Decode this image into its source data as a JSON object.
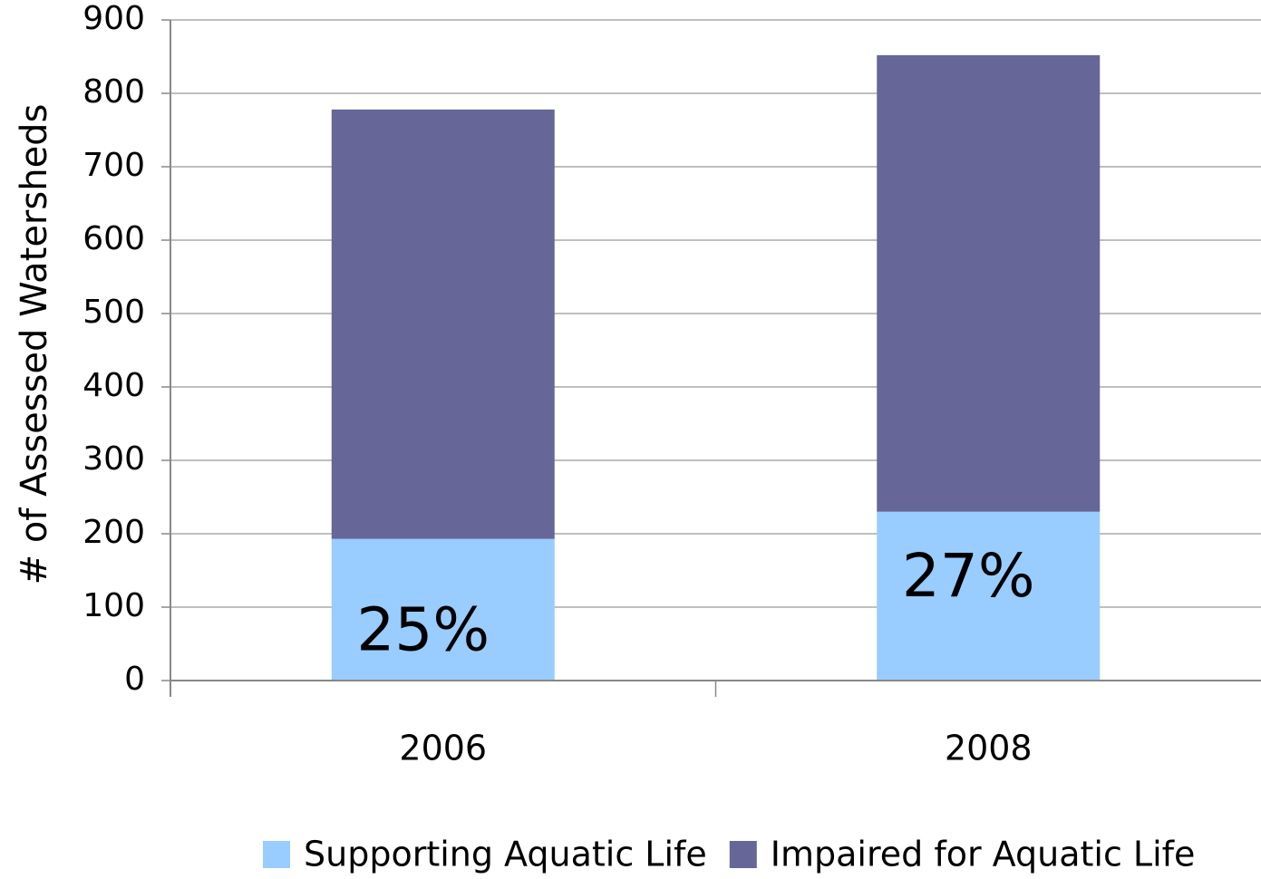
{
  "chart_data": {
    "type": "stacked_bar",
    "y_label": "# of Assessed Watersheds",
    "categories": [
      "2006",
      "2008"
    ],
    "series": [
      {
        "name": "Supporting Aquatic Life",
        "color": "#99ccff",
        "values": [
          193,
          230
        ]
      },
      {
        "name": "Impaired for Aquatic Life",
        "color": "#666699",
        "values": [
          585,
          622
        ]
      }
    ],
    "annotations": [
      "25%",
      "27%"
    ],
    "ylim": [
      0,
      900
    ],
    "yticks": [
      0,
      100,
      200,
      300,
      400,
      500,
      600,
      700,
      800,
      900
    ],
    "grid": true,
    "legend": "bottom"
  }
}
